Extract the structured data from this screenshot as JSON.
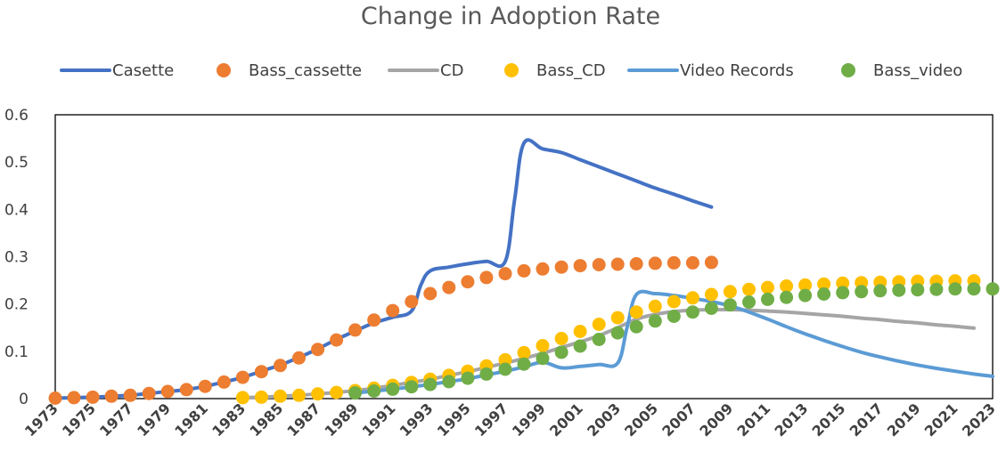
{
  "chart_data": {
    "type": "line",
    "title": "Change in Adoption Rate",
    "xlabel": "",
    "ylabel": "",
    "xlim": [
      1973,
      2023
    ],
    "ylim": [
      0,
      0.6
    ],
    "y_ticks": [
      0,
      0.1,
      0.2,
      0.3,
      0.4,
      0.5,
      0.6
    ],
    "y_tick_labels": [
      "0",
      "0.1",
      "0.2",
      "0.3",
      "0.4",
      "0.5",
      "0.6"
    ],
    "x_ticks": [
      1973,
      1975,
      1977,
      1979,
      1981,
      1983,
      1985,
      1987,
      1989,
      1991,
      1993,
      1995,
      1997,
      1999,
      2001,
      2003,
      2005,
      2007,
      2009,
      2011,
      2013,
      2015,
      2017,
      2019,
      2021,
      2023
    ],
    "x_tick_labels": [
      "1973",
      "1975",
      "1977",
      "1979",
      "1981",
      "1983",
      "1985",
      "1987",
      "1989",
      "1991",
      "1993",
      "1995",
      "1997",
      "1999",
      "2001",
      "2003",
      "2005",
      "2007",
      "2009",
      "2011",
      "2013",
      "2015",
      "2017",
      "2019",
      "2021",
      "2023"
    ],
    "grid": false,
    "legend_position": "top",
    "series": [
      {
        "name": "Casette",
        "style": "line",
        "color": "#4472C4",
        "x": [
          1973,
          1974,
          1975,
          1976,
          1977,
          1978,
          1979,
          1980,
          1981,
          1982,
          1983,
          1984,
          1985,
          1986,
          1987,
          1988,
          1989,
          1990,
          1991,
          1992,
          1992.5,
          1993,
          1994,
          1995,
          1996,
          1997,
          1997.5,
          1998,
          1999,
          2000,
          2001,
          2002,
          2003,
          2004,
          2005,
          2006,
          2007,
          2008
        ],
        "y": [
          0.001,
          0.002,
          0.003,
          0.005,
          0.007,
          0.011,
          0.015,
          0.019,
          0.026,
          0.035,
          0.045,
          0.058,
          0.071,
          0.087,
          0.105,
          0.125,
          0.143,
          0.16,
          0.172,
          0.185,
          0.24,
          0.27,
          0.278,
          0.285,
          0.29,
          0.29,
          0.42,
          0.54,
          0.528,
          0.52,
          0.505,
          0.49,
          0.475,
          0.46,
          0.445,
          0.432,
          0.418,
          0.405
        ]
      },
      {
        "name": "Bass_cassette",
        "style": "markers",
        "color": "#ED7D31",
        "x": [
          1973,
          1974,
          1975,
          1976,
          1977,
          1978,
          1979,
          1980,
          1981,
          1982,
          1983,
          1984,
          1985,
          1986,
          1987,
          1988,
          1989,
          1990,
          1991,
          1992,
          1993,
          1994,
          1995,
          1996,
          1997,
          1998,
          1999,
          2000,
          2001,
          2002,
          2003,
          2004,
          2005,
          2006,
          2007,
          2008
        ],
        "y": [
          0.001,
          0.002,
          0.003,
          0.005,
          0.007,
          0.011,
          0.015,
          0.019,
          0.026,
          0.035,
          0.045,
          0.057,
          0.07,
          0.086,
          0.104,
          0.124,
          0.145,
          0.166,
          0.186,
          0.205,
          0.222,
          0.235,
          0.247,
          0.256,
          0.264,
          0.27,
          0.274,
          0.278,
          0.281,
          0.283,
          0.284,
          0.285,
          0.286,
          0.287,
          0.287,
          0.288
        ]
      },
      {
        "name": "CD",
        "style": "line",
        "color": "#A5A5A5",
        "x": [
          1983,
          1984,
          1985,
          1986,
          1987,
          1988,
          1989,
          1990,
          1991,
          1992,
          1993,
          1994,
          1995,
          1996,
          1997,
          1998,
          1999,
          2000,
          2001,
          2002,
          2003,
          2004,
          2005,
          2006,
          2007,
          2008,
          2009,
          2010,
          2011,
          2012,
          2013,
          2014,
          2015,
          2016,
          2017,
          2018,
          2019,
          2020,
          2021,
          2022
        ],
        "y": [
          0.002,
          0.003,
          0.005,
          0.007,
          0.01,
          0.013,
          0.017,
          0.022,
          0.028,
          0.034,
          0.041,
          0.049,
          0.057,
          0.066,
          0.075,
          0.085,
          0.096,
          0.108,
          0.12,
          0.133,
          0.15,
          0.168,
          0.178,
          0.184,
          0.187,
          0.188,
          0.188,
          0.187,
          0.185,
          0.183,
          0.18,
          0.177,
          0.174,
          0.17,
          0.167,
          0.163,
          0.16,
          0.156,
          0.153,
          0.149
        ]
      },
      {
        "name": "Bass_CD",
        "style": "markers",
        "color": "#FFC000",
        "x": [
          1983,
          1984,
          1985,
          1986,
          1987,
          1988,
          1989,
          1990,
          1991,
          1992,
          1993,
          1994,
          1995,
          1996,
          1997,
          1998,
          1999,
          2000,
          2001,
          2002,
          2003,
          2004,
          2005,
          2006,
          2007,
          2008,
          2009,
          2010,
          2011,
          2012,
          2013,
          2014,
          2015,
          2016,
          2017,
          2018,
          2019,
          2020,
          2021,
          2022
        ],
        "y": [
          0.002,
          0.003,
          0.005,
          0.007,
          0.01,
          0.013,
          0.017,
          0.022,
          0.028,
          0.034,
          0.041,
          0.049,
          0.058,
          0.069,
          0.082,
          0.097,
          0.112,
          0.127,
          0.142,
          0.157,
          0.171,
          0.183,
          0.195,
          0.205,
          0.213,
          0.22,
          0.226,
          0.231,
          0.235,
          0.238,
          0.24,
          0.242,
          0.244,
          0.245,
          0.246,
          0.247,
          0.248,
          0.248,
          0.249,
          0.249
        ]
      },
      {
        "name": "Video Records",
        "style": "line",
        "color": "#5B9BD5",
        "x": [
          1989,
          1990,
          1991,
          1992,
          1993,
          1994,
          1995,
          1996,
          1997,
          1998,
          1999,
          2000,
          2001,
          2002,
          2003,
          2003.5,
          2004,
          2005,
          2006,
          2007,
          2008,
          2009,
          2010,
          2011,
          2012,
          2013,
          2014,
          2015,
          2016,
          2017,
          2018,
          2019,
          2020,
          2021,
          2022,
          2023
        ],
        "y": [
          0.012,
          0.016,
          0.02,
          0.025,
          0.03,
          0.036,
          0.042,
          0.05,
          0.058,
          0.067,
          0.077,
          0.065,
          0.068,
          0.072,
          0.075,
          0.15,
          0.22,
          0.222,
          0.218,
          0.212,
          0.205,
          0.196,
          0.183,
          0.168,
          0.152,
          0.137,
          0.123,
          0.11,
          0.098,
          0.088,
          0.079,
          0.071,
          0.064,
          0.058,
          0.052,
          0.047
        ]
      },
      {
        "name": "Bass_video",
        "style": "markers",
        "color": "#70AD47",
        "x": [
          1989,
          1990,
          1991,
          1992,
          1993,
          1994,
          1995,
          1996,
          1997,
          1998,
          1999,
          2000,
          2001,
          2002,
          2003,
          2004,
          2005,
          2006,
          2007,
          2008,
          2009,
          2010,
          2011,
          2012,
          2013,
          2014,
          2015,
          2016,
          2017,
          2018,
          2019,
          2020,
          2021,
          2022,
          2023
        ],
        "y": [
          0.012,
          0.016,
          0.02,
          0.025,
          0.03,
          0.036,
          0.043,
          0.052,
          0.062,
          0.073,
          0.085,
          0.098,
          0.111,
          0.125,
          0.139,
          0.152,
          0.164,
          0.174,
          0.183,
          0.191,
          0.198,
          0.204,
          0.21,
          0.214,
          0.218,
          0.221,
          0.224,
          0.226,
          0.228,
          0.229,
          0.23,
          0.231,
          0.232,
          0.232,
          0.232
        ]
      }
    ]
  }
}
